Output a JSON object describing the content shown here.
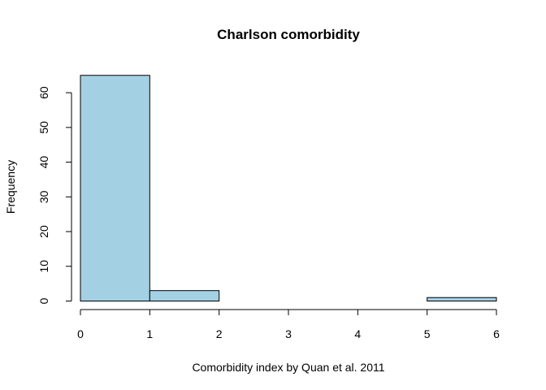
{
  "chart_data": {
    "type": "bar",
    "title": "Charlson comorbidity",
    "xlabel": "Comorbidity index by Quan et al. 2011",
    "ylabel": "Frequency",
    "bins": [
      {
        "from": 0,
        "to": 1,
        "value": 65
      },
      {
        "from": 1,
        "to": 2,
        "value": 3
      },
      {
        "from": 2,
        "to": 3,
        "value": 0
      },
      {
        "from": 3,
        "to": 4,
        "value": 0
      },
      {
        "from": 4,
        "to": 5,
        "value": 0
      },
      {
        "from": 5,
        "to": 6,
        "value": 1
      }
    ],
    "xlim": [
      0,
      6
    ],
    "ylim": [
      0,
      65
    ],
    "xticks": [
      "0",
      "1",
      "2",
      "3",
      "4",
      "5",
      "6"
    ],
    "yticks": [
      "0",
      "10",
      "20",
      "30",
      "40",
      "50",
      "60"
    ],
    "bar_color": "#a3d1e3",
    "grid": false,
    "legend": "none"
  }
}
